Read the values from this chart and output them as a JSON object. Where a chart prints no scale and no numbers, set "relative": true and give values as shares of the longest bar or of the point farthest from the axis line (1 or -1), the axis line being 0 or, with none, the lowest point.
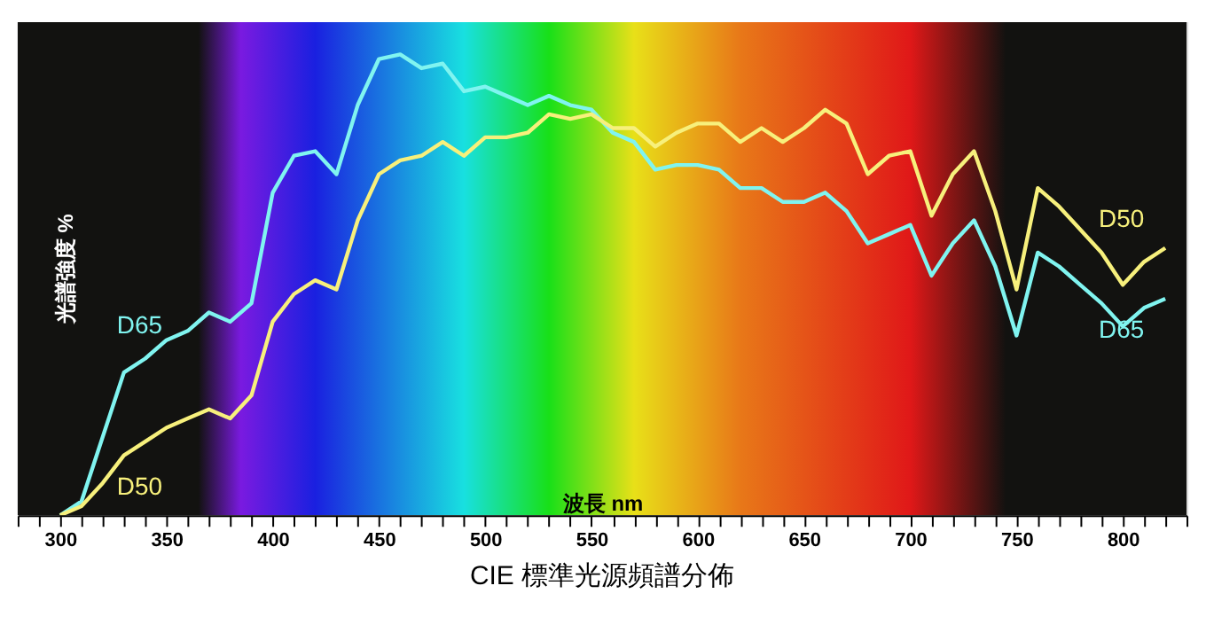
{
  "chart_data": {
    "type": "line",
    "title": "CIE 標準光源頻譜分佈",
    "xlabel": "波長 nm",
    "ylabel": "光譜強度 %",
    "relative": true,
    "x": [
      300,
      310,
      320,
      330,
      340,
      350,
      360,
      370,
      380,
      390,
      400,
      410,
      420,
      430,
      440,
      450,
      460,
      470,
      480,
      490,
      500,
      510,
      520,
      530,
      540,
      550,
      560,
      570,
      580,
      590,
      600,
      610,
      620,
      630,
      640,
      650,
      660,
      670,
      680,
      690,
      700,
      710,
      720,
      730,
      740,
      750,
      760,
      770,
      780,
      790,
      800,
      810,
      820
    ],
    "xlim": [
      280,
      830
    ],
    "xticks": [
      {
        "value": 280,
        "label": null
      },
      {
        "value": 290,
        "label": null
      },
      300,
      {
        "value": 310,
        "label": null
      },
      {
        "value": 320,
        "label": null
      },
      {
        "value": 330,
        "label": null
      },
      {
        "value": 340,
        "label": null
      },
      350,
      {
        "value": 360,
        "label": null
      },
      {
        "value": 370,
        "label": null
      },
      {
        "value": 380,
        "label": null
      },
      {
        "value": 390,
        "label": null
      },
      400,
      {
        "value": 410,
        "label": null
      },
      {
        "value": 420,
        "label": null
      },
      {
        "value": 430,
        "label": null
      },
      {
        "value": 440,
        "label": null
      },
      450,
      {
        "value": 460,
        "label": null
      },
      {
        "value": 470,
        "label": null
      },
      {
        "value": 480,
        "label": null
      },
      {
        "value": 490,
        "label": null
      },
      500,
      {
        "value": 510,
        "label": null
      },
      {
        "value": 520,
        "label": null
      },
      {
        "value": 530,
        "label": null
      },
      {
        "value": 540,
        "label": null
      },
      550,
      {
        "value": 560,
        "label": null
      },
      {
        "value": 570,
        "label": null
      },
      {
        "value": 580,
        "label": null
      },
      {
        "value": 590,
        "label": null
      },
      600,
      {
        "value": 610,
        "label": null
      },
      {
        "value": 620,
        "label": null
      },
      {
        "value": 630,
        "label": null
      },
      {
        "value": 640,
        "label": null
      },
      650,
      {
        "value": 660,
        "label": null
      },
      {
        "value": 670,
        "label": null
      },
      {
        "value": 680,
        "label": null
      },
      {
        "value": 690,
        "label": null
      },
      700,
      {
        "value": 710,
        "label": null
      },
      {
        "value": 720,
        "label": null
      },
      {
        "value": 730,
        "label": null
      },
      {
        "value": 740,
        "label": null
      },
      750,
      {
        "value": 760,
        "label": null
      },
      {
        "value": 770,
        "label": null
      },
      {
        "value": 780,
        "label": null
      },
      {
        "value": 790,
        "label": null
      },
      800,
      {
        "value": 810,
        "label": null
      },
      {
        "value": 820,
        "label": null
      },
      {
        "value": 830,
        "label": null
      }
    ],
    "grid": false,
    "legend": false,
    "marker": "none",
    "line_style": "solid",
    "series": [
      {
        "name": "D65",
        "color": "#80f4f0",
        "values": [
          0,
          0.03,
          0.17,
          0.31,
          0.34,
          0.38,
          0.4,
          0.44,
          0.42,
          0.46,
          0.7,
          0.78,
          0.79,
          0.74,
          0.89,
          0.99,
          1.0,
          0.97,
          0.98,
          0.92,
          0.93,
          0.91,
          0.89,
          0.91,
          0.89,
          0.88,
          0.83,
          0.81,
          0.75,
          0.76,
          0.76,
          0.75,
          0.71,
          0.71,
          0.68,
          0.68,
          0.7,
          0.66,
          0.59,
          0.61,
          0.63,
          0.52,
          0.59,
          0.64,
          0.54,
          0.39,
          0.57,
          0.54,
          0.5,
          0.46,
          0.41,
          0.45,
          0.47
        ]
      },
      {
        "name": "D50",
        "color": "#f7f07c",
        "values": [
          0,
          0.02,
          0.07,
          0.13,
          0.16,
          0.19,
          0.21,
          0.23,
          0.21,
          0.26,
          0.42,
          0.48,
          0.51,
          0.49,
          0.64,
          0.74,
          0.77,
          0.78,
          0.81,
          0.78,
          0.82,
          0.82,
          0.83,
          0.87,
          0.86,
          0.87,
          0.84,
          0.84,
          0.8,
          0.83,
          0.85,
          0.85,
          0.81,
          0.84,
          0.81,
          0.84,
          0.88,
          0.85,
          0.74,
          0.78,
          0.79,
          0.65,
          0.74,
          0.79,
          0.66,
          0.49,
          0.71,
          0.67,
          0.62,
          0.57,
          0.5,
          0.55,
          0.58
        ]
      }
    ]
  }
}
